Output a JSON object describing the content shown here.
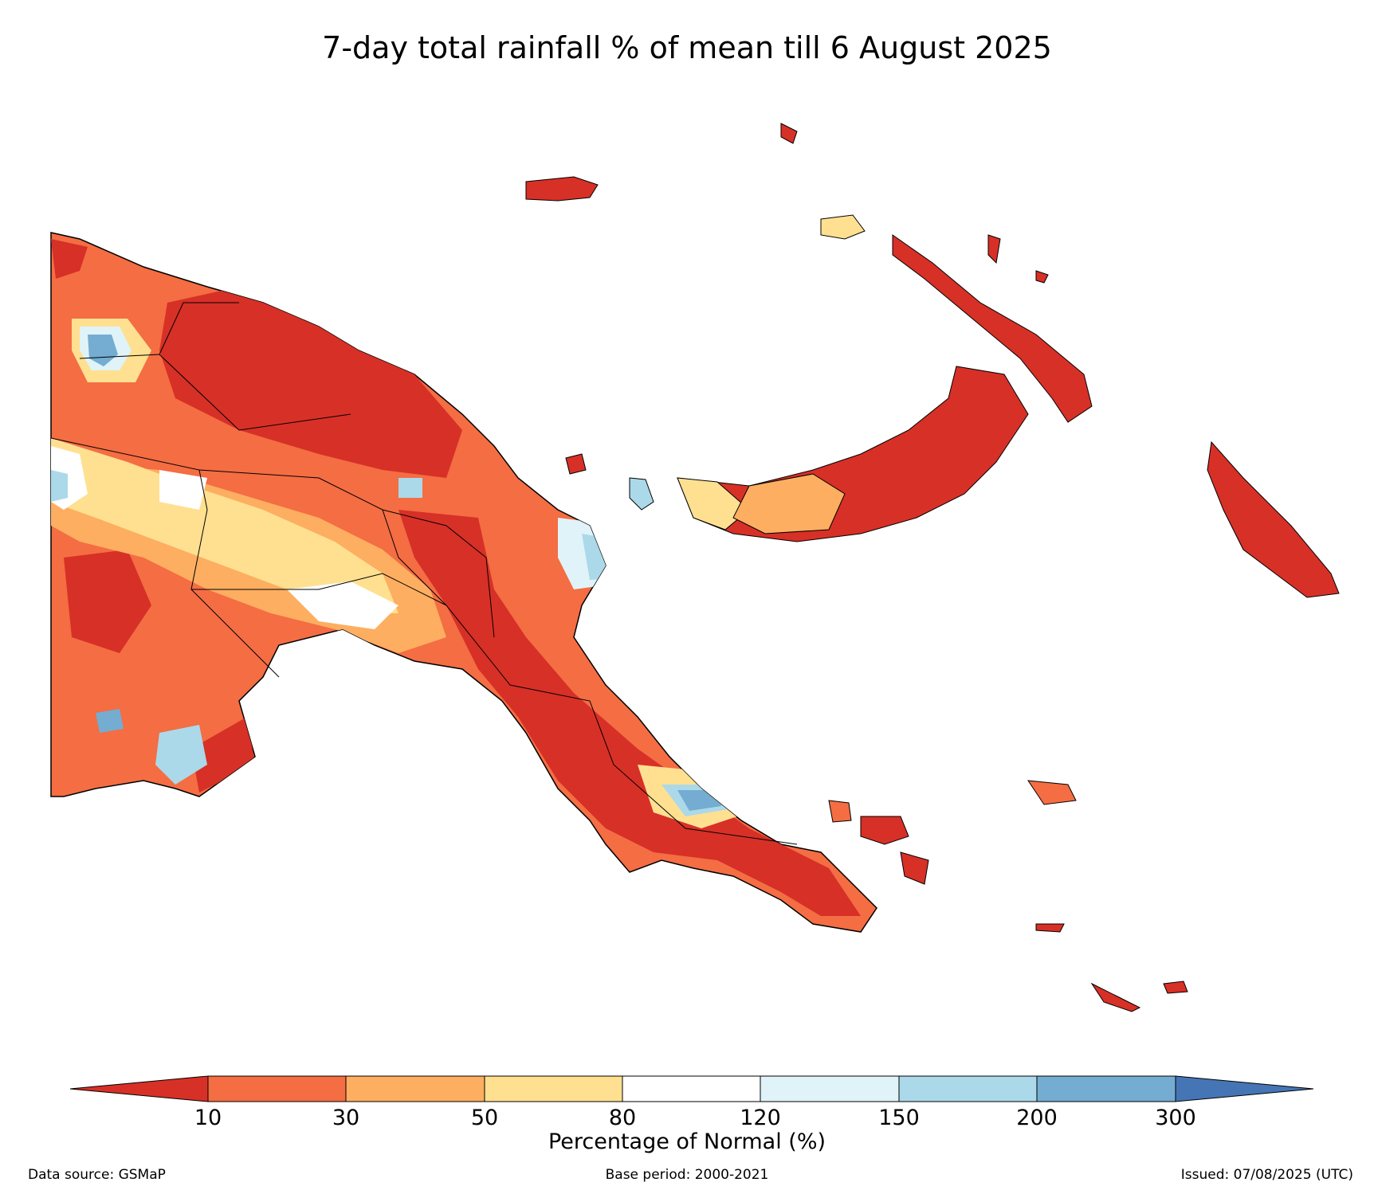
{
  "title": "7-day total rainfall % of mean till 6 August 2025",
  "colorbar": {
    "label": "Percentage of Normal (%)",
    "ticks": [
      "10",
      "30",
      "50",
      "80",
      "120",
      "150",
      "200",
      "300"
    ],
    "colors": {
      "lt10": "#d73027",
      "c10_30": "#f46d43",
      "c30_50": "#fdae61",
      "c50_80": "#fee090",
      "c80_120": "#ffffff",
      "c120_150": "#e0f3f8",
      "c150_200": "#abd9e9",
      "c200_300": "#74add1",
      "gt300": "#4575b4"
    }
  },
  "footer": {
    "source": "Data source: GSMaP",
    "base_period": "Base period: 2000-2021",
    "issued": "Issued: 07/08/2025 (UTC)"
  }
}
